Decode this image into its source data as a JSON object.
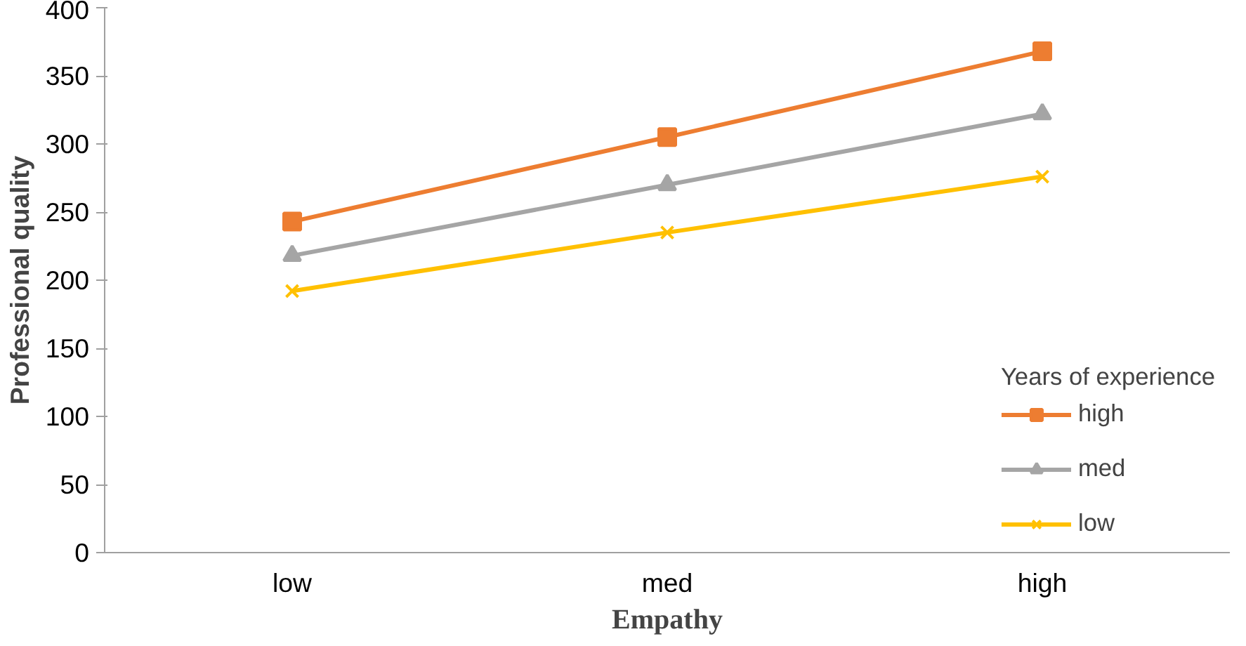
{
  "chart_data": {
    "type": "line",
    "xlabel": "Empathy",
    "ylabel": "Professional quality",
    "legend_title": "Years of experience",
    "categories": [
      "low",
      "med",
      "high"
    ],
    "series": [
      {
        "name": "high",
        "color": "#ed7d31",
        "marker": "square",
        "values": [
          243,
          305,
          368
        ]
      },
      {
        "name": "med",
        "color": "#a5a5a5",
        "marker": "triangle",
        "values": [
          218,
          270,
          322
        ]
      },
      {
        "name": "low",
        "color": "#ffc000",
        "marker": "cross",
        "values": [
          192,
          235,
          276
        ]
      }
    ],
    "ylim": [
      0,
      400
    ],
    "yticks": [
      0,
      50,
      100,
      150,
      200,
      250,
      300,
      350,
      400
    ],
    "grid": false,
    "legend": "right",
    "line_style": "solid"
  }
}
